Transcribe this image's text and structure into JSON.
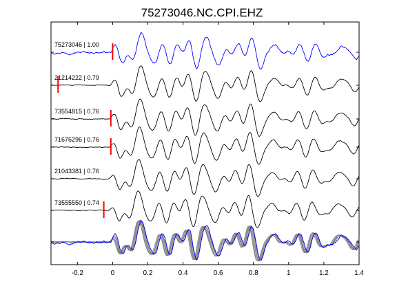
{
  "chart_data": {
    "type": "line",
    "title": "75273046.NC.CPI.EHZ",
    "xlabel": "",
    "ylabel": "",
    "xlim": [
      -0.35,
      1.4
    ],
    "xticks": [
      -0.2,
      0,
      0.2,
      0.4,
      0.6,
      0.8,
      1,
      1.2,
      1.4
    ],
    "xtick_labels": [
      "-0.2",
      "0",
      "0.2",
      "0.4",
      "0.6",
      "0.8",
      "1",
      "1.2",
      "1.4"
    ],
    "grid": false,
    "legend": "none",
    "colors": {
      "reference": "#0000ff",
      "trace": "#000000",
      "stack_trace": "#808080",
      "pick": "#ff0000",
      "axes": "#000000"
    },
    "series": [
      {
        "label": "75273046 | 1.00",
        "correlation": 1.0,
        "pick_time": 0.0,
        "reference": true
      },
      {
        "label": "21214222 | 0.79",
        "correlation": 0.79,
        "pick_time": -0.31
      },
      {
        "label": "73554815 | 0.76",
        "correlation": 0.76,
        "pick_time": -0.01
      },
      {
        "label": "71676296 | 0.76",
        "correlation": 0.76,
        "pick_time": -0.01
      },
      {
        "label": "21043381 | 0.76",
        "correlation": 0.76,
        "pick_time": null
      },
      {
        "label": "73555550 | 0.74",
        "correlation": 0.74,
        "pick_time": -0.05
      }
    ],
    "overlay": {
      "description_row": "all traces overlaid, reference in blue"
    }
  }
}
